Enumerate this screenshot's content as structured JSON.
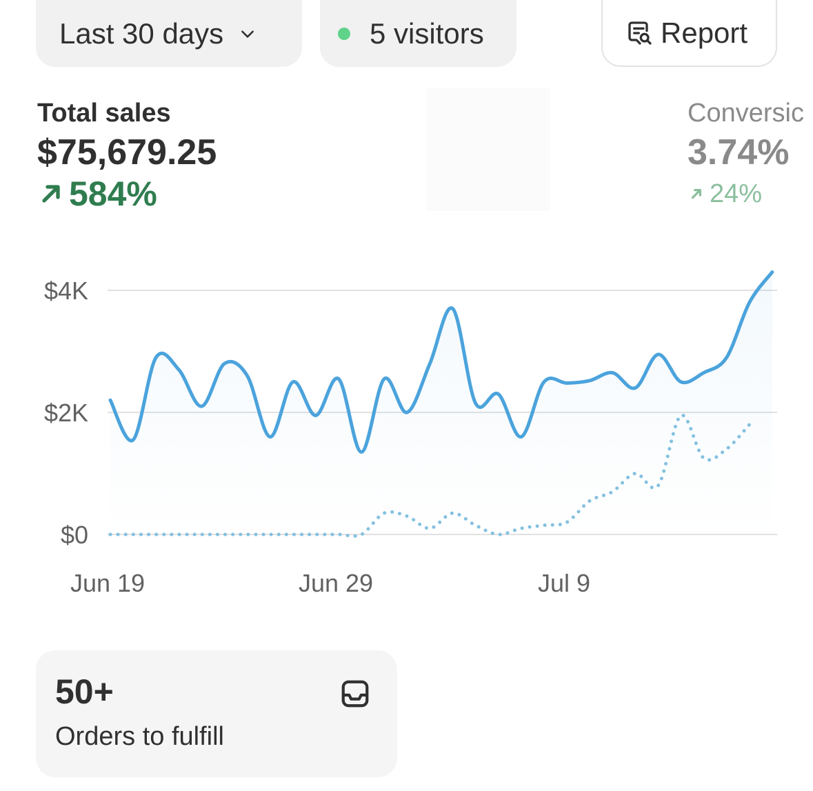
{
  "filters": {
    "date_range": "Last 30 days",
    "visitors": "5 visitors",
    "live_color": "#5fd38a",
    "dropdown_icon": "chevron-down-icon"
  },
  "report_button": {
    "label": "Report",
    "icon": "report-search-icon"
  },
  "metrics": {
    "total_sales": {
      "label": "Total sales",
      "value": "$75,679.25",
      "change": "584%",
      "trend": "up",
      "color": "#2f7d4f"
    },
    "conversion": {
      "label": "Conversic",
      "value": "3.74%",
      "change": "24%",
      "trend": "up",
      "color": "#8bbf9e"
    }
  },
  "chart_data": {
    "type": "line",
    "y_ticks": [
      "$0",
      "$2K",
      "$4K"
    ],
    "x_ticks": [
      {
        "label": "Jun 19",
        "day": 0
      },
      {
        "label": "Jun 29",
        "day": 10
      },
      {
        "label": "Jul 9",
        "day": 20
      }
    ],
    "ylim": [
      0,
      4000
    ],
    "grid": true,
    "series": [
      {
        "style": "solid",
        "color": "#4ba3dc",
        "values": [
          [
            0,
            2200
          ],
          [
            1,
            1550
          ],
          [
            2,
            2900
          ],
          [
            3,
            2700
          ],
          [
            4,
            2100
          ],
          [
            5,
            2800
          ],
          [
            6,
            2600
          ],
          [
            7,
            1600
          ],
          [
            8,
            2500
          ],
          [
            9,
            1950
          ],
          [
            10,
            2550
          ],
          [
            11,
            1350
          ],
          [
            12,
            2550
          ],
          [
            13,
            2000
          ],
          [
            14,
            2800
          ],
          [
            15,
            3700
          ],
          [
            16,
            2150
          ],
          [
            17,
            2300
          ],
          [
            18,
            1600
          ],
          [
            19,
            2500
          ],
          [
            20,
            2480
          ],
          [
            21,
            2520
          ],
          [
            22,
            2650
          ],
          [
            23,
            2400
          ],
          [
            24,
            2950
          ],
          [
            25,
            2500
          ],
          [
            26,
            2650
          ],
          [
            27,
            2900
          ],
          [
            28,
            3800
          ],
          [
            29,
            4300
          ]
        ]
      },
      {
        "style": "dotted",
        "color": "#84c0e0",
        "values": [
          [
            0,
            0
          ],
          [
            1,
            0
          ],
          [
            2,
            0
          ],
          [
            3,
            0
          ],
          [
            4,
            0
          ],
          [
            5,
            0
          ],
          [
            6,
            0
          ],
          [
            7,
            0
          ],
          [
            8,
            0
          ],
          [
            9,
            0
          ],
          [
            10,
            0
          ],
          [
            11,
            0
          ],
          [
            12,
            350
          ],
          [
            13,
            300
          ],
          [
            14,
            100
          ],
          [
            15,
            350
          ],
          [
            16,
            150
          ],
          [
            17,
            0
          ],
          [
            18,
            100
          ],
          [
            19,
            150
          ],
          [
            20,
            200
          ],
          [
            21,
            550
          ],
          [
            22,
            700
          ],
          [
            23,
            1000
          ],
          [
            24,
            800
          ],
          [
            25,
            1950
          ],
          [
            26,
            1250
          ],
          [
            27,
            1400
          ],
          [
            28,
            1800
          ]
        ]
      }
    ]
  },
  "orders": {
    "count": "50+",
    "label": "Orders to fulfill",
    "icon": "inbox-icon"
  }
}
